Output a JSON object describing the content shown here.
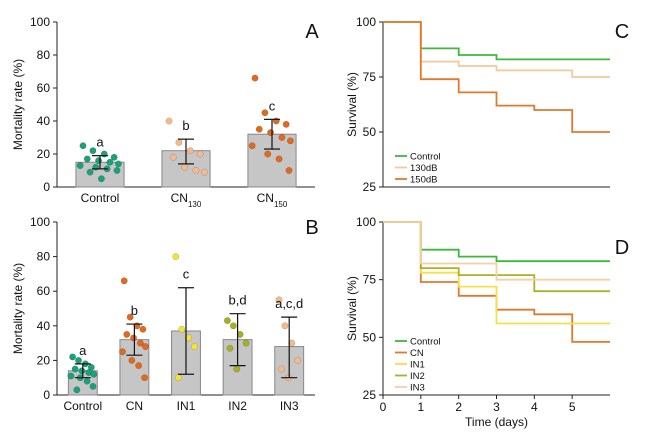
{
  "chart_data": [
    {
      "panel": "A",
      "type": "bar",
      "ylabel": "Mortality rate (%)",
      "ylim": [
        0,
        100
      ],
      "yticks": [
        0,
        20,
        40,
        60,
        80,
        100
      ],
      "categories": [
        {
          "main": "Control",
          "sub": ""
        },
        {
          "main": "CN",
          "sub": "130"
        },
        {
          "main": "CN",
          "sub": "150"
        }
      ],
      "values": [
        15,
        22,
        32
      ],
      "errors": [
        [
          11,
          19
        ],
        [
          14,
          29
        ],
        [
          23,
          41
        ]
      ],
      "letters": [
        "a",
        "b",
        "c"
      ],
      "point_colors": [
        "#1aa17b",
        "#f4b98c",
        "#e06a1e"
      ],
      "points": [
        [
          25,
          22,
          20,
          18,
          17,
          16,
          15,
          14,
          13,
          12,
          11,
          10,
          9,
          5
        ],
        [
          40,
          27,
          22,
          20,
          18,
          12,
          10,
          9
        ],
        [
          66,
          45,
          40,
          38,
          35,
          33,
          30,
          28,
          25,
          20,
          17,
          10
        ]
      ]
    },
    {
      "panel": "B",
      "type": "bar",
      "ylabel": "Mortality rate (%)",
      "ylim": [
        0,
        100
      ],
      "yticks": [
        0,
        20,
        40,
        60,
        80,
        100
      ],
      "categories": [
        {
          "main": "Control",
          "sub": ""
        },
        {
          "main": "CN",
          "sub": ""
        },
        {
          "main": "IN1",
          "sub": ""
        },
        {
          "main": "IN2",
          "sub": ""
        },
        {
          "main": "IN3",
          "sub": ""
        }
      ],
      "values": [
        14,
        32,
        37,
        32,
        28
      ],
      "errors": [
        [
          10,
          18
        ],
        [
          23,
          41
        ],
        [
          12,
          62
        ],
        [
          17,
          47
        ],
        [
          10,
          45
        ]
      ],
      "letters": [
        "a",
        "b",
        "c",
        "b,d",
        "a,c,d"
      ],
      "point_colors": [
        "#1aa17b",
        "#e06a1e",
        "#f2e23a",
        "#a7b024",
        "#f4b98c"
      ],
      "points": [
        [
          22,
          20,
          18,
          16,
          15,
          14,
          13,
          12,
          11,
          10,
          8,
          5,
          3
        ],
        [
          66,
          45,
          40,
          38,
          35,
          33,
          30,
          28,
          25,
          20,
          17,
          10
        ],
        [
          80,
          38,
          33,
          28,
          10
        ],
        [
          43,
          40,
          35,
          30,
          27,
          15
        ],
        [
          55,
          40,
          30,
          20,
          15,
          10
        ]
      ]
    },
    {
      "panel": "C",
      "type": "line",
      "subtype": "step",
      "ylabel": "Survival (%)",
      "xlim": [
        0,
        6
      ],
      "ylim": [
        25,
        100
      ],
      "yticks": [
        25,
        50,
        75,
        100
      ],
      "legend_position": "bottom-left",
      "series": [
        {
          "name": "Control",
          "color": "#3cb83c",
          "x": [
            0,
            1,
            1,
            2,
            2,
            3,
            3,
            6
          ],
          "y": [
            100,
            100,
            88,
            88,
            85,
            85,
            83,
            83
          ]
        },
        {
          "name": "130dB",
          "color": "#f3c89a",
          "x": [
            0,
            1,
            1,
            2,
            2,
            3,
            3,
            5,
            5,
            6
          ],
          "y": [
            100,
            100,
            82,
            82,
            80,
            80,
            78,
            78,
            75,
            75
          ]
        },
        {
          "name": "150dB",
          "color": "#df7a2c",
          "x": [
            0,
            1,
            1,
            2,
            2,
            3,
            3,
            4,
            4,
            5,
            5,
            6
          ],
          "y": [
            100,
            100,
            74,
            74,
            68,
            68,
            62,
            62,
            60,
            60,
            50,
            50
          ]
        }
      ]
    },
    {
      "panel": "D",
      "type": "line",
      "subtype": "step",
      "xlabel": "Time (days)",
      "ylabel": "Survival (%)",
      "xlim": [
        0,
        6
      ],
      "xticks": [
        0,
        1,
        2,
        3,
        4,
        5
      ],
      "ylim": [
        25,
        100
      ],
      "yticks": [
        25,
        50,
        75,
        100
      ],
      "legend_position": "bottom-left",
      "series": [
        {
          "name": "Control",
          "color": "#3cb83c",
          "x": [
            0,
            1,
            1,
            2,
            2,
            3,
            3,
            6
          ],
          "y": [
            100,
            100,
            88,
            88,
            85,
            85,
            83,
            83
          ]
        },
        {
          "name": "CN",
          "color": "#df7a2c",
          "x": [
            0,
            1,
            1,
            2,
            2,
            3,
            3,
            4,
            4,
            5,
            5,
            6
          ],
          "y": [
            100,
            100,
            74,
            74,
            68,
            68,
            62,
            62,
            60,
            60,
            48,
            48
          ]
        },
        {
          "name": "IN1",
          "color": "#f5e04a",
          "x": [
            0,
            1,
            1,
            2,
            2,
            3,
            3,
            6
          ],
          "y": [
            100,
            100,
            78,
            78,
            72,
            72,
            56,
            56
          ]
        },
        {
          "name": "IN2",
          "color": "#a9b325",
          "x": [
            0,
            1,
            1,
            2,
            2,
            4,
            4,
            6
          ],
          "y": [
            100,
            100,
            80,
            80,
            77,
            77,
            70,
            70
          ]
        },
        {
          "name": "IN3",
          "color": "#f5cfa6",
          "x": [
            0,
            1,
            1,
            3,
            3,
            6
          ],
          "y": [
            100,
            100,
            82,
            82,
            75,
            75
          ]
        }
      ]
    }
  ]
}
